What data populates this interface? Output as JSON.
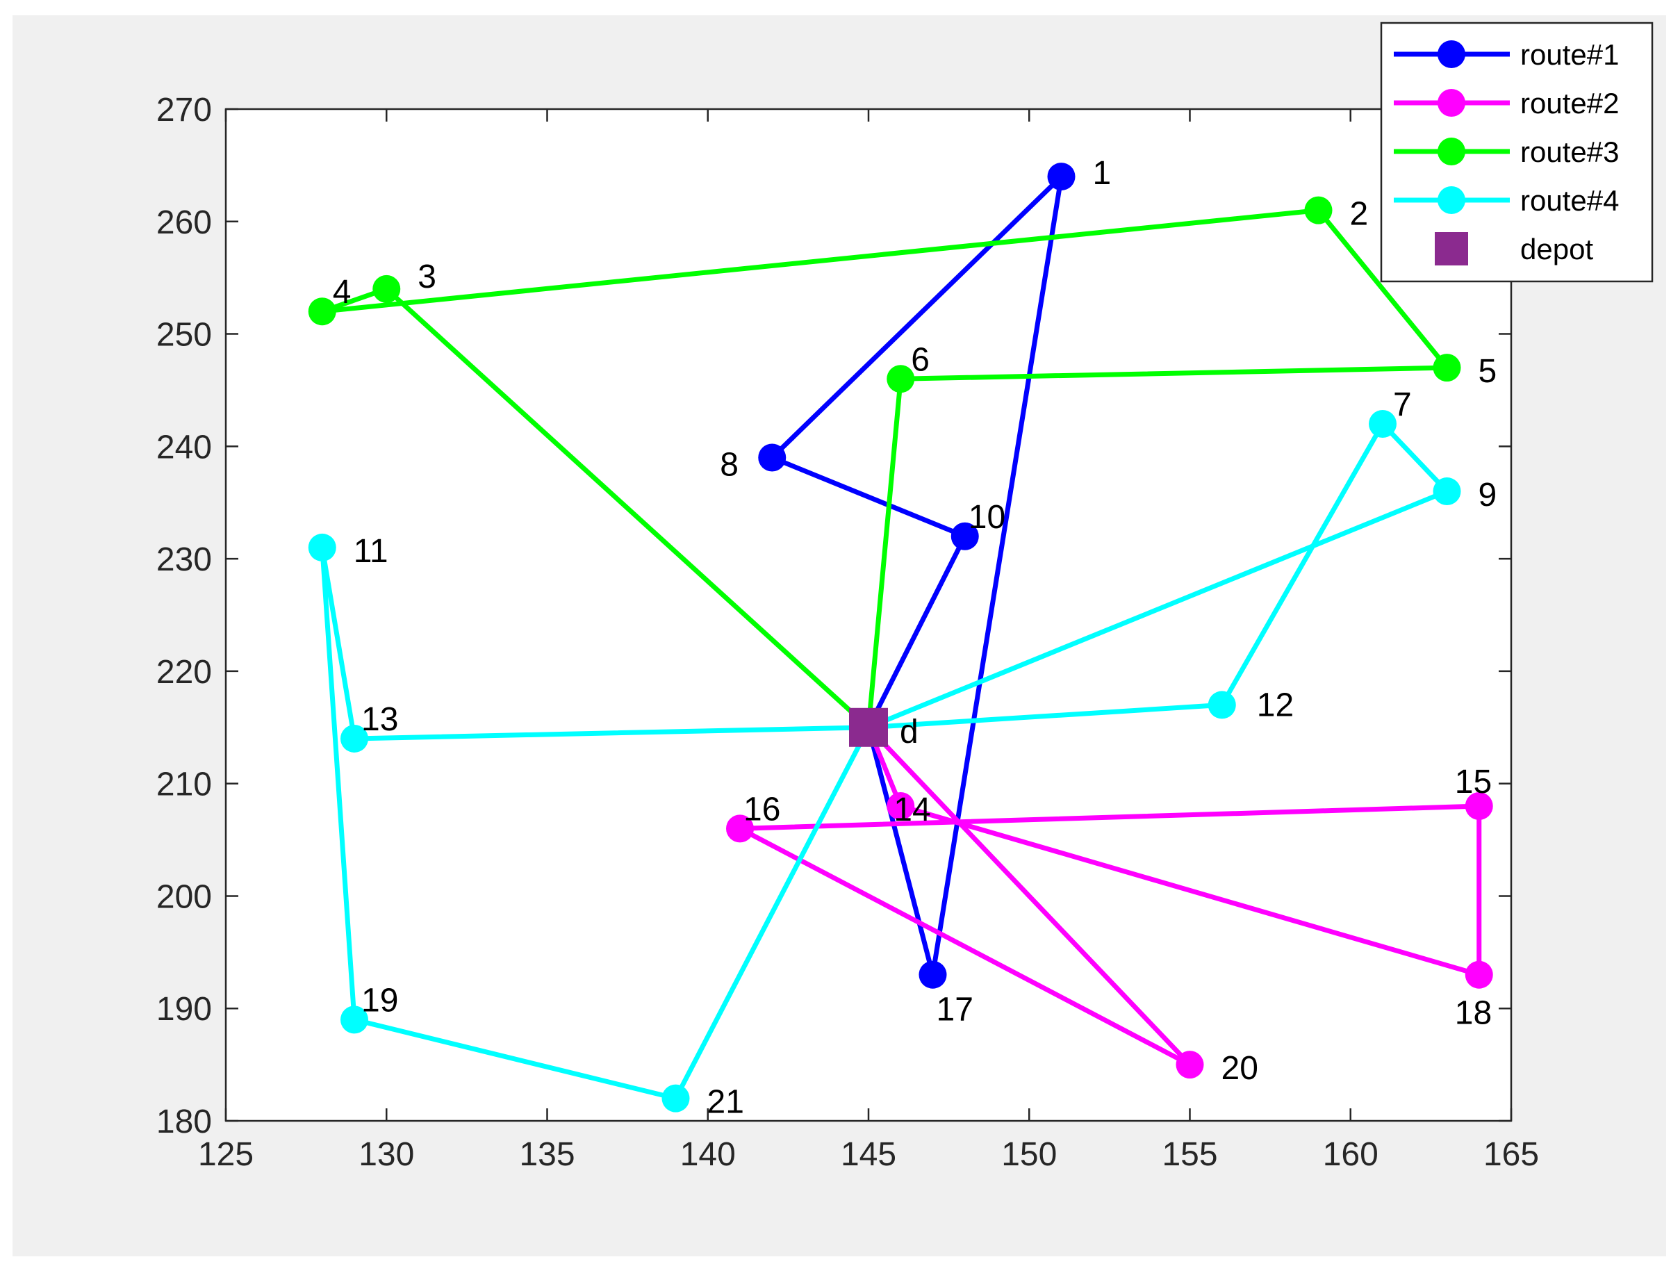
{
  "chart_data": {
    "type": "line",
    "title": "",
    "xlabel": "",
    "ylabel": "",
    "xlim": [
      125,
      165
    ],
    "ylim": [
      180,
      270
    ],
    "xticks": [
      125,
      130,
      135,
      140,
      145,
      150,
      155,
      160,
      165
    ],
    "yticks": [
      180,
      190,
      200,
      210,
      220,
      230,
      240,
      250,
      260,
      270
    ],
    "grid": false,
    "legend_position": "top-right",
    "depot": {
      "label": "d",
      "legend": "depot",
      "x": 145,
      "y": 215,
      "color": "#8b2a8f"
    },
    "series": [
      {
        "name": "route#1",
        "color": "#0000ff",
        "points": [
          {
            "label": "d",
            "x": 145,
            "y": 215
          },
          {
            "label": "10",
            "x": 148,
            "y": 232
          },
          {
            "label": "8",
            "x": 142,
            "y": 239
          },
          {
            "label": "1",
            "x": 151,
            "y": 264
          },
          {
            "label": "17",
            "x": 147,
            "y": 193
          },
          {
            "label": "d",
            "x": 145,
            "y": 215
          }
        ]
      },
      {
        "name": "route#2",
        "color": "#ff00ff",
        "points": [
          {
            "label": "d",
            "x": 145,
            "y": 215
          },
          {
            "label": "14",
            "x": 146,
            "y": 208
          },
          {
            "label": "18",
            "x": 164,
            "y": 193
          },
          {
            "label": "15",
            "x": 164,
            "y": 208
          },
          {
            "label": "16",
            "x": 141,
            "y": 206
          },
          {
            "label": "20",
            "x": 155,
            "y": 185
          },
          {
            "label": "d",
            "x": 145,
            "y": 215
          }
        ]
      },
      {
        "name": "route#3",
        "color": "#00ff00",
        "points": [
          {
            "label": "d",
            "x": 145,
            "y": 215
          },
          {
            "label": "6",
            "x": 146,
            "y": 246
          },
          {
            "label": "5",
            "x": 163,
            "y": 247
          },
          {
            "label": "2",
            "x": 159,
            "y": 261
          },
          {
            "label": "4",
            "x": 128,
            "y": 252
          },
          {
            "label": "3",
            "x": 130,
            "y": 254
          },
          {
            "label": "d",
            "x": 145,
            "y": 215
          }
        ]
      },
      {
        "name": "route#4",
        "color": "#00ffff",
        "points": [
          {
            "label": "d",
            "x": 145,
            "y": 215
          },
          {
            "label": "12",
            "x": 156,
            "y": 217
          },
          {
            "label": "7",
            "x": 161,
            "y": 242
          },
          {
            "label": "9",
            "x": 163,
            "y": 236
          },
          {
            "label": "d",
            "x": 145,
            "y": 215
          },
          {
            "label": "13",
            "x": 129,
            "y": 214
          },
          {
            "label": "11",
            "x": 128,
            "y": 231
          },
          {
            "label": "19",
            "x": 129,
            "y": 189
          },
          {
            "label": "21",
            "x": 139,
            "y": 182
          },
          {
            "label": "d",
            "x": 145,
            "y": 215
          }
        ]
      }
    ]
  }
}
